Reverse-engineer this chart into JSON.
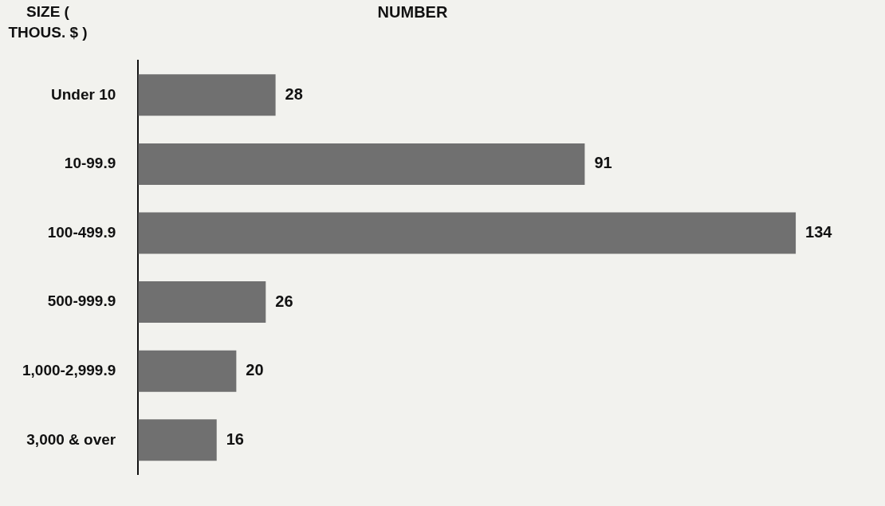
{
  "chart_data": {
    "type": "bar",
    "orientation": "horizontal",
    "title": "NUMBER",
    "ylabel": "SIZE ( THOUS. $ )",
    "categories": [
      "Under 10",
      "10-99.9",
      "100-499.9",
      "500-999.9",
      "1,000-2,999.9",
      "3,000 & over"
    ],
    "values": [
      28,
      91,
      134,
      26,
      20,
      16
    ],
    "color": "#707070",
    "data_labels": true,
    "tick_labels": "y"
  }
}
